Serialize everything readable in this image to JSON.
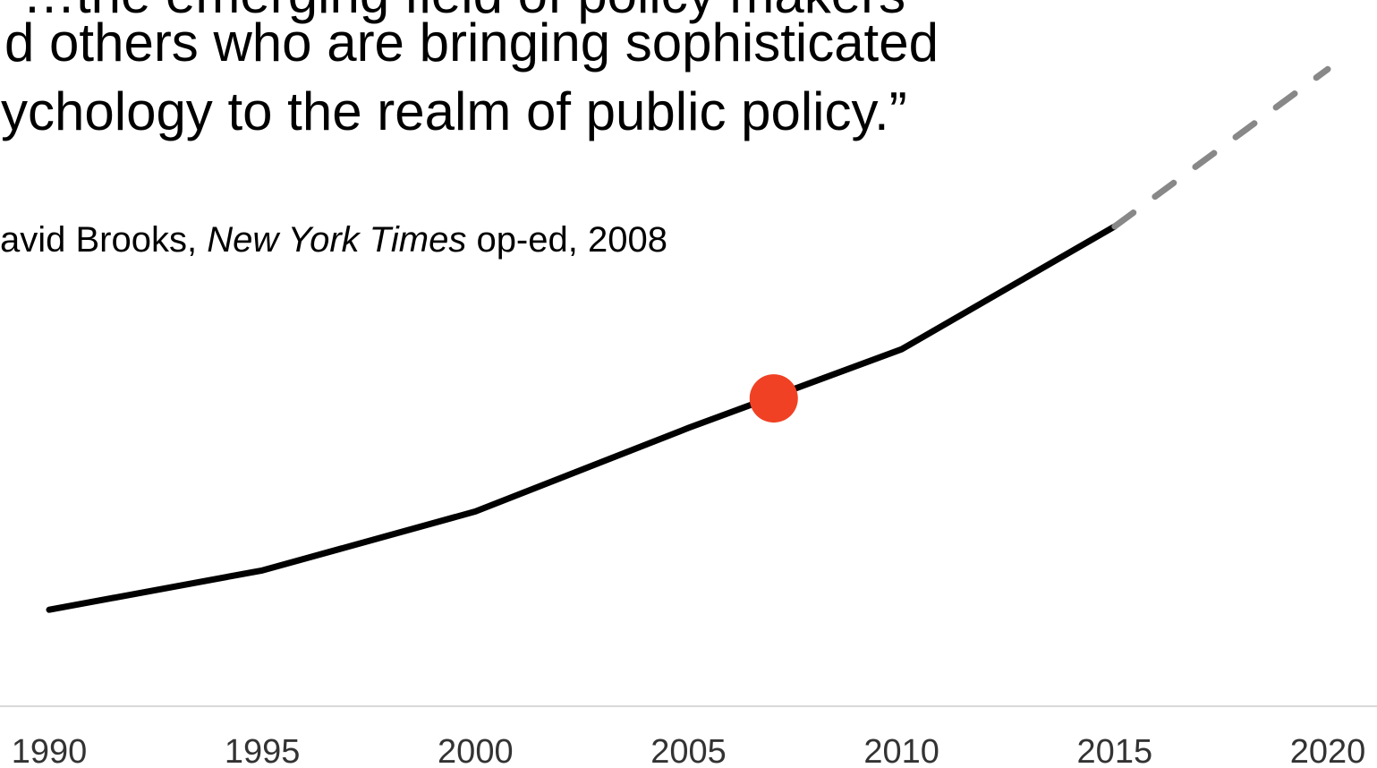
{
  "quote": {
    "line1": "“…the emerging field of policy makers",
    "line2": "d others who are bringing sophisticated",
    "line3": "ychology to the realm of public policy.”"
  },
  "attribution": {
    "prefix": "avid Brooks, ",
    "source": "New York Times",
    "suffix": " op-ed, 2008"
  },
  "chart_data": {
    "type": "line",
    "title": "",
    "xlabel": "",
    "ylabel": "",
    "x_ticks": [
      1990,
      1995,
      2000,
      2005,
      2010,
      2015,
      2020
    ],
    "xlim": [
      1990,
      2020
    ],
    "ylim": [
      0,
      100
    ],
    "grid": false,
    "series": [
      {
        "style": "solid",
        "color": "#000000",
        "x": [
          1990,
          1995,
          2000,
          2005,
          2010,
          2015
        ],
        "y": [
          18,
          26,
          38,
          55,
          71,
          96
        ]
      },
      {
        "style": "dashed",
        "color": "#888888",
        "x": [
          2015,
          2020
        ],
        "y": [
          96,
          128
        ]
      }
    ],
    "highlight": {
      "x": 2007,
      "y": 61,
      "color": "#f04124"
    }
  }
}
